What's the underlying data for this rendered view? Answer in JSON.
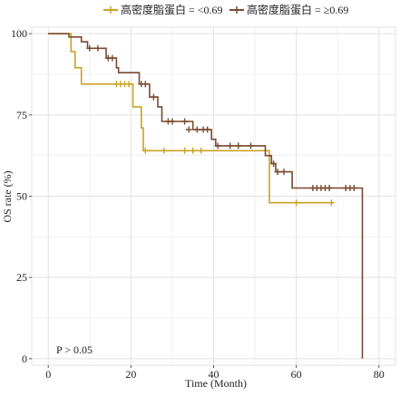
{
  "chart_data": {
    "type": "line",
    "title": "",
    "xlabel": "Time (Month)",
    "ylabel": "OS rate (%)",
    "xlim": [
      -4,
      84
    ],
    "ylim": [
      -2,
      102
    ],
    "x_ticks": [
      0,
      20,
      40,
      60,
      80
    ],
    "x_tick_labels": [
      "0",
      "20",
      "40",
      "60",
      "80"
    ],
    "y_ticks": [
      0,
      25,
      50,
      75,
      100
    ],
    "y_tick_labels": [
      "0",
      "25",
      "50",
      "75",
      "100"
    ],
    "grid": true,
    "legend_position": "top",
    "annotation": "P > 0.05",
    "series": [
      {
        "name": "高密度脂蛋白 = <0.69",
        "color": "#c9a227",
        "step_points": [
          [
            0,
            100
          ],
          [
            5.5,
            100
          ],
          [
            5.5,
            94.5
          ],
          [
            6.5,
            94.5
          ],
          [
            6.5,
            89.5
          ],
          [
            8,
            89.5
          ],
          [
            8,
            84.5
          ],
          [
            20.5,
            84.5
          ],
          [
            20.5,
            77.5
          ],
          [
            22.5,
            77.5
          ],
          [
            22.5,
            71
          ],
          [
            23,
            71
          ],
          [
            23,
            64
          ],
          [
            53.5,
            64
          ],
          [
            53.5,
            48
          ],
          [
            69,
            48
          ]
        ],
        "censored": [
          [
            16.5,
            84.5
          ],
          [
            17.5,
            84.5
          ],
          [
            18.5,
            84.5
          ],
          [
            19.5,
            84.5
          ],
          [
            23.5,
            64
          ],
          [
            28,
            64
          ],
          [
            33,
            64
          ],
          [
            35,
            64
          ],
          [
            37,
            64
          ],
          [
            60,
            48
          ],
          [
            68.5,
            48
          ]
        ]
      },
      {
        "name": "高密度脂蛋白 = ≥0.69",
        "color": "#7a4a2e",
        "step_points": [
          [
            0,
            100
          ],
          [
            5,
            100
          ],
          [
            5,
            99
          ],
          [
            8,
            99
          ],
          [
            8,
            97.5
          ],
          [
            9.5,
            97.5
          ],
          [
            9.5,
            95.5
          ],
          [
            14,
            95.5
          ],
          [
            14,
            92.5
          ],
          [
            16.5,
            92.5
          ],
          [
            16.5,
            89.5
          ],
          [
            17,
            89.5
          ],
          [
            17,
            88
          ],
          [
            22,
            88
          ],
          [
            22,
            84.5
          ],
          [
            24.5,
            84.5
          ],
          [
            24.5,
            80.5
          ],
          [
            26.5,
            80.5
          ],
          [
            26.5,
            77.5
          ],
          [
            27.5,
            77.5
          ],
          [
            27.5,
            73
          ],
          [
            35,
            73
          ],
          [
            35,
            70.5
          ],
          [
            39.5,
            70.5
          ],
          [
            39.5,
            67.5
          ],
          [
            40.5,
            67.5
          ],
          [
            40.5,
            65.5
          ],
          [
            52.5,
            65.5
          ],
          [
            52.5,
            62.5
          ],
          [
            54,
            62.5
          ],
          [
            54,
            60
          ],
          [
            55,
            60
          ],
          [
            55,
            57.5
          ],
          [
            59,
            57.5
          ],
          [
            59,
            52.5
          ],
          [
            76,
            52.5
          ],
          [
            76,
            0
          ]
        ],
        "censored": [
          [
            10,
            95.5
          ],
          [
            12,
            95.5
          ],
          [
            14.5,
            92.5
          ],
          [
            15.5,
            92.5
          ],
          [
            22.5,
            84.5
          ],
          [
            23.5,
            84.5
          ],
          [
            25.5,
            80.5
          ],
          [
            29,
            73
          ],
          [
            30,
            73
          ],
          [
            33,
            73
          ],
          [
            34,
            70.5
          ],
          [
            36,
            70.5
          ],
          [
            37.5,
            70.5
          ],
          [
            38.5,
            70.5
          ],
          [
            41,
            65.5
          ],
          [
            44,
            65.5
          ],
          [
            46,
            65.5
          ],
          [
            49,
            65.5
          ],
          [
            54.5,
            60
          ],
          [
            55.5,
            57.5
          ],
          [
            57,
            57.5
          ],
          [
            64,
            52.5
          ],
          [
            65,
            52.5
          ],
          [
            66,
            52.5
          ],
          [
            67,
            52.5
          ],
          [
            68,
            52.5
          ],
          [
            72,
            52.5
          ],
          [
            73,
            52.5
          ],
          [
            74,
            52.5
          ]
        ]
      }
    ]
  }
}
